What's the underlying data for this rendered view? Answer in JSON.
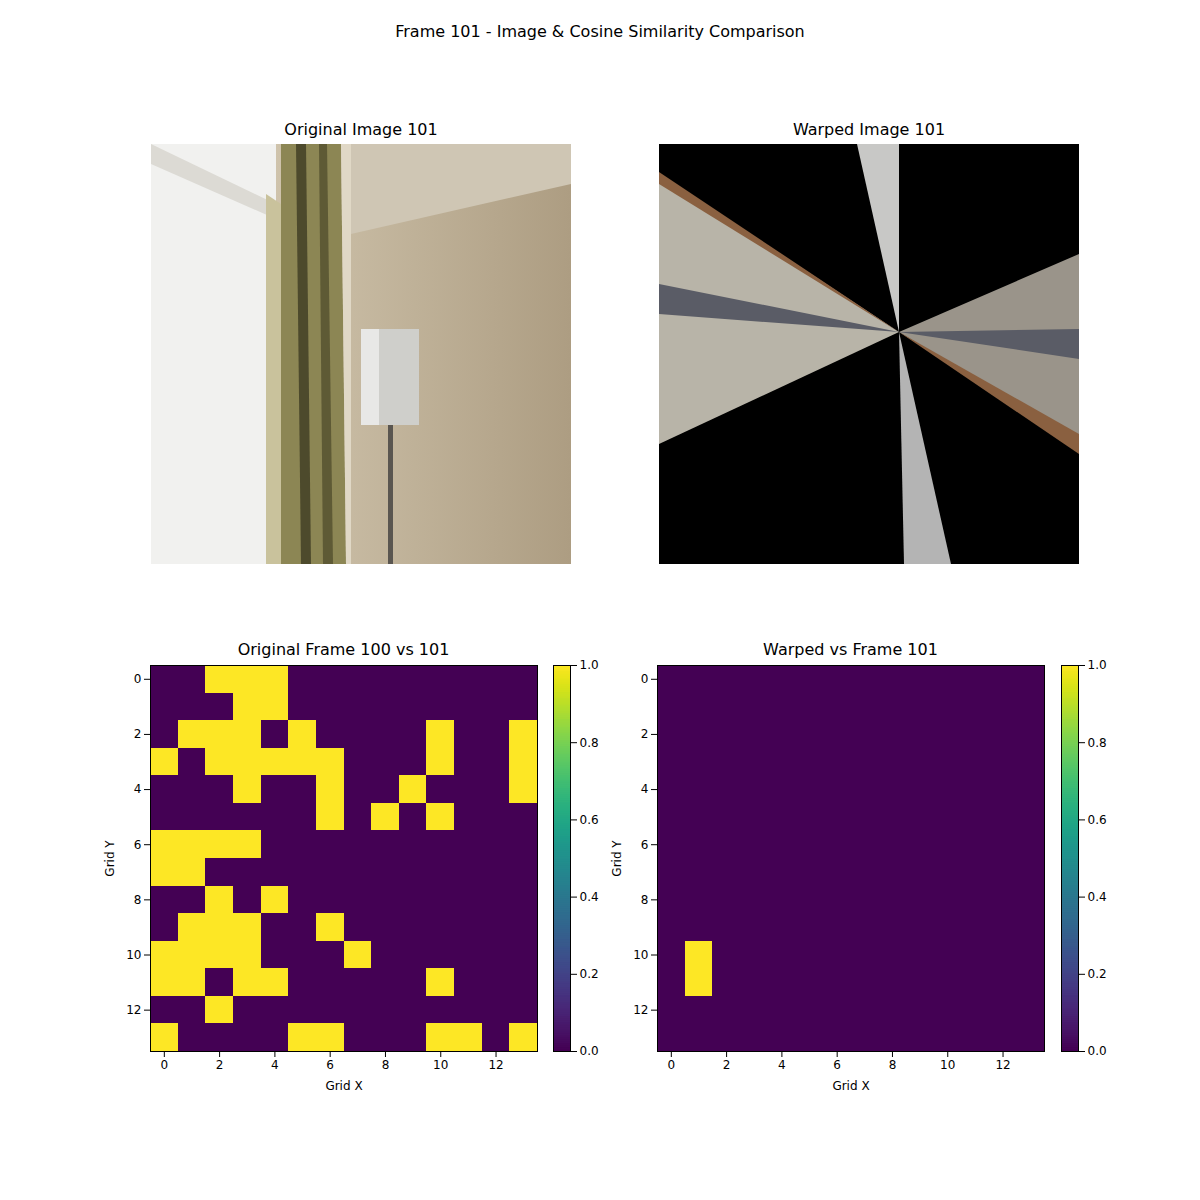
{
  "title": "Frame 101 - Image & Cosine Similarity Comparison",
  "chart_data": [
    {
      "type": "image",
      "title": "Original Image 101"
    },
    {
      "type": "image",
      "title": "Warped Image 101"
    },
    {
      "type": "heatmap",
      "title": "Original Frame 100 vs 101",
      "x_label": "Grid X",
      "y_label": "Grid Y",
      "xlim": [
        -0.5,
        13.5
      ],
      "ylim": [
        13.5,
        -0.5
      ],
      "xticks": [
        0,
        2,
        4,
        6,
        8,
        10,
        12
      ],
      "yticks": [
        0,
        2,
        4,
        6,
        8,
        10,
        12
      ],
      "color": "viridis",
      "values": [
        [
          0,
          0,
          1,
          1,
          1,
          0,
          0,
          0,
          0,
          0,
          0,
          0,
          0,
          0
        ],
        [
          0,
          0,
          0,
          1,
          1,
          0,
          0,
          0,
          0,
          0,
          0,
          0,
          0,
          0
        ],
        [
          0,
          1,
          1,
          1,
          0,
          1,
          0,
          0,
          0,
          0,
          1,
          0,
          0,
          1
        ],
        [
          1,
          0,
          1,
          1,
          1,
          1,
          1,
          0,
          0,
          0,
          1,
          0,
          0,
          1
        ],
        [
          0,
          0,
          0,
          1,
          0,
          0,
          1,
          0,
          0,
          1,
          0,
          0,
          0,
          1
        ],
        [
          0,
          0,
          0,
          0,
          0,
          0,
          1,
          0,
          1,
          0,
          1,
          0,
          0,
          0
        ],
        [
          1,
          1,
          1,
          1,
          0,
          0,
          0,
          0,
          0,
          0,
          0,
          0,
          0,
          0
        ],
        [
          1,
          1,
          0,
          0,
          0,
          0,
          0,
          0,
          0,
          0,
          0,
          0,
          0,
          0
        ],
        [
          0,
          0,
          1,
          0,
          1,
          0,
          0,
          0,
          0,
          0,
          0,
          0,
          0,
          0
        ],
        [
          0,
          1,
          1,
          1,
          0,
          0,
          1,
          0,
          0,
          0,
          0,
          0,
          0,
          0
        ],
        [
          1,
          1,
          1,
          1,
          0,
          0,
          0,
          1,
          0,
          0,
          0,
          0,
          0,
          0
        ],
        [
          1,
          1,
          0,
          1,
          1,
          0,
          0,
          0,
          0,
          0,
          1,
          0,
          0,
          0
        ],
        [
          0,
          0,
          1,
          0,
          0,
          0,
          0,
          0,
          0,
          0,
          0,
          0,
          0,
          0
        ],
        [
          1,
          0,
          0,
          0,
          0,
          1,
          1,
          0,
          0,
          0,
          1,
          1,
          0,
          1
        ]
      ],
      "colorbar_range": [
        0,
        1
      ],
      "colorbar_ticks": [
        {
          "value": 0,
          "label": "0.0"
        },
        {
          "value": 0.2,
          "label": "0.2"
        },
        {
          "value": 0.4,
          "label": "0.4"
        },
        {
          "value": 0.6,
          "label": "0.6"
        },
        {
          "value": 0.8,
          "label": "0.8"
        },
        {
          "value": 1,
          "label": "1.0"
        }
      ]
    },
    {
      "type": "heatmap",
      "title": "Warped vs Frame 101",
      "x_label": "Grid X",
      "y_label": "Grid Y",
      "xlim": [
        -0.5,
        13.5
      ],
      "ylim": [
        13.5,
        -0.5
      ],
      "xticks": [
        0,
        2,
        4,
        6,
        8,
        10,
        12
      ],
      "yticks": [
        0,
        2,
        4,
        6,
        8,
        10,
        12
      ],
      "color": "viridis",
      "values": [
        [
          0,
          0,
          0,
          0,
          0,
          0,
          0,
          0,
          0,
          0,
          0,
          0,
          0,
          0
        ],
        [
          0,
          0,
          0,
          0,
          0,
          0,
          0,
          0,
          0,
          0,
          0,
          0,
          0,
          0
        ],
        [
          0,
          0,
          0,
          0,
          0,
          0,
          0,
          0,
          0,
          0,
          0,
          0,
          0,
          0
        ],
        [
          0,
          0,
          0,
          0,
          0,
          0,
          0,
          0,
          0,
          0,
          0,
          0,
          0,
          0
        ],
        [
          0,
          0,
          0,
          0,
          0,
          0,
          0,
          0,
          0,
          0,
          0,
          0,
          0,
          0
        ],
        [
          0,
          0,
          0,
          0,
          0,
          0,
          0,
          0,
          0,
          0,
          0,
          0,
          0,
          0
        ],
        [
          0,
          0,
          0,
          0,
          0,
          0,
          0,
          0,
          0,
          0,
          0,
          0,
          0,
          0
        ],
        [
          0,
          0,
          0,
          0,
          0,
          0,
          0,
          0,
          0,
          0,
          0,
          0,
          0,
          0
        ],
        [
          0,
          0,
          0,
          0,
          0,
          0,
          0,
          0,
          0,
          0,
          0,
          0,
          0,
          0
        ],
        [
          0,
          0,
          0,
          0,
          0,
          0,
          0,
          0,
          0,
          0,
          0,
          0,
          0,
          0
        ],
        [
          0,
          1,
          0,
          0,
          0,
          0,
          0,
          0,
          0,
          0,
          0,
          0,
          0,
          0
        ],
        [
          0,
          1,
          0,
          0,
          0,
          0,
          0,
          0,
          0,
          0,
          0,
          0,
          0,
          0
        ],
        [
          0,
          0,
          0,
          0,
          0,
          0,
          0,
          0,
          0,
          0,
          0,
          0,
          0,
          0
        ],
        [
          0,
          0,
          0,
          0,
          0,
          0,
          0,
          0,
          0,
          0,
          0,
          0,
          0,
          0
        ]
      ],
      "colorbar_range": [
        0,
        1
      ],
      "colorbar_ticks": [
        {
          "value": 0,
          "label": "0.0"
        },
        {
          "value": 0.2,
          "label": "0.2"
        },
        {
          "value": 0.4,
          "label": "0.4"
        },
        {
          "value": 0.6,
          "label": "0.6"
        },
        {
          "value": 0.8,
          "label": "0.8"
        },
        {
          "value": 1,
          "label": "1.0"
        }
      ]
    }
  ]
}
